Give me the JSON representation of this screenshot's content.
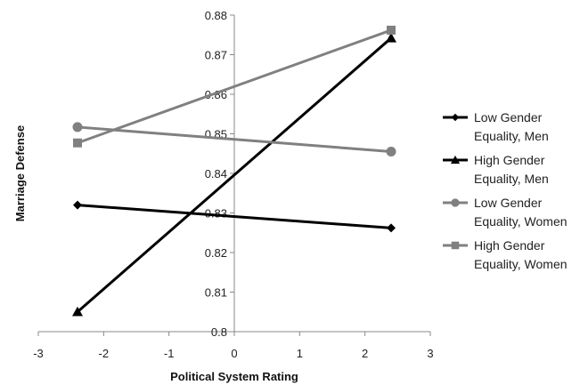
{
  "chart_data": {
    "type": "line",
    "title": "",
    "xlabel": "Political System Rating",
    "ylabel": "Marriage Defense",
    "xlim": [
      -3,
      3
    ],
    "ylim": [
      0.8,
      0.88
    ],
    "xticks": [
      "-3",
      "-2",
      "-1",
      "0",
      "1",
      "2",
      "3"
    ],
    "yticks": [
      "0.8",
      "0.81",
      "0.82",
      "0.83",
      "0.84",
      "0.85",
      "0.86",
      "0.87",
      "0.88"
    ],
    "grid": false,
    "legend_position": "right",
    "x": [
      -2.4,
      2.4
    ],
    "series": [
      {
        "name": "Low Gender Equality, Men",
        "label_lines": [
          "Low Gender",
          "Equality, Men"
        ],
        "values": [
          0.832,
          0.8262
        ],
        "color": "#000000",
        "marker": "diamond"
      },
      {
        "name": "High Gender Equality, Men",
        "label_lines": [
          "High Gender",
          "Equality, Men"
        ],
        "values": [
          0.805,
          0.8742
        ],
        "color": "#000000",
        "marker": "triangle"
      },
      {
        "name": "Low Gender Equality, Women",
        "label_lines": [
          "Low Gender",
          "Equality, Women"
        ],
        "values": [
          0.8517,
          0.8455
        ],
        "color": "#808080",
        "marker": "circle"
      },
      {
        "name": "High Gender Equality, Women",
        "label_lines": [
          "High Gender",
          "Equality, Women"
        ],
        "values": [
          0.8477,
          0.8762
        ],
        "color": "#808080",
        "marker": "square"
      }
    ]
  }
}
